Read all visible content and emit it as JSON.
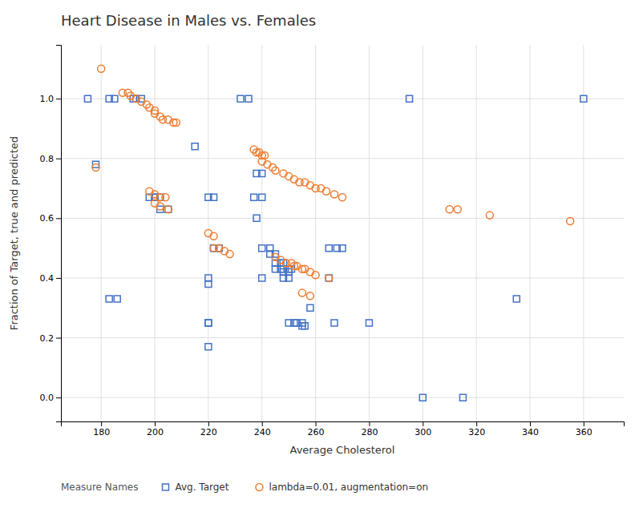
{
  "chart_data": {
    "type": "scatter",
    "title": "Heart Disease in Males vs. Females",
    "xlabel": "Average Cholesterol",
    "ylabel": "Fraction of Target, true and predicted",
    "xlim": [
      165,
      375
    ],
    "ylim": [
      -0.08,
      1.18
    ],
    "xticks": [
      180,
      200,
      220,
      240,
      260,
      280,
      300,
      320,
      340,
      360
    ],
    "yticks": [
      {
        "value": 0.0,
        "label": "0.0"
      },
      0.2,
      0.4,
      0.6,
      0.8,
      {
        "value": 1.0,
        "label": "1.0"
      }
    ],
    "grid": true,
    "legend": "bottom",
    "legend_title": "Measure Names",
    "series": [
      {
        "name": "Avg. Target",
        "color": "#4472C4",
        "marker": "square",
        "x": [
          175,
          183,
          185,
          192,
          193,
          195,
          198,
          200,
          202,
          200,
          202,
          205,
          178,
          183,
          186,
          215,
          220,
          222,
          222,
          224,
          220,
          220,
          220,
          220,
          220,
          232,
          235,
          238,
          240,
          237,
          240,
          238,
          240,
          243,
          240,
          243,
          245,
          245,
          247,
          248,
          245,
          247,
          248,
          250,
          251,
          248,
          250,
          248,
          250,
          250,
          252,
          253,
          255,
          255,
          256,
          258,
          265,
          268,
          270,
          265,
          267,
          280,
          295,
          300,
          315,
          335,
          360
        ],
        "values": [
          1.0,
          1.0,
          1.0,
          1.0,
          1.0,
          1.0,
          0.67,
          0.67,
          0.67,
          0.67,
          0.63,
          0.63,
          0.78,
          0.33,
          0.33,
          0.84,
          0.67,
          0.67,
          0.5,
          0.5,
          0.4,
          0.38,
          0.25,
          0.25,
          0.17,
          1.0,
          1.0,
          0.75,
          0.75,
          0.67,
          0.67,
          0.6,
          0.5,
          0.5,
          0.4,
          0.48,
          0.48,
          0.45,
          0.45,
          0.45,
          0.43,
          0.43,
          0.43,
          0.43,
          0.43,
          0.42,
          0.42,
          0.4,
          0.4,
          0.25,
          0.25,
          0.25,
          0.25,
          0.24,
          0.24,
          0.3,
          0.5,
          0.5,
          0.5,
          0.4,
          0.25,
          0.25,
          1.0,
          0.0,
          0.0,
          0.33,
          1.0
        ]
      },
      {
        "name": "lambda=0.01, augmentation=on",
        "color": "#ED7D31",
        "marker": "circle",
        "x": [
          180,
          188,
          190,
          191,
          193,
          195,
          197,
          198,
          200,
          200,
          202,
          203,
          205,
          207,
          208,
          198,
          200,
          202,
          204,
          200,
          202,
          205,
          178,
          220,
          222,
          222,
          224,
          226,
          228,
          237,
          238,
          239,
          240,
          241,
          240,
          242,
          244,
          245,
          248,
          250,
          252,
          254,
          256,
          258,
          260,
          262,
          264,
          267,
          270,
          245,
          247,
          249,
          251,
          252,
          253,
          255,
          256,
          258,
          260,
          265,
          255,
          258,
          310,
          313,
          325,
          355
        ],
        "values": [
          1.1,
          1.02,
          1.02,
          1.01,
          1.0,
          0.99,
          0.98,
          0.97,
          0.96,
          0.95,
          0.94,
          0.93,
          0.93,
          0.92,
          0.92,
          0.69,
          0.68,
          0.67,
          0.67,
          0.65,
          0.64,
          0.63,
          0.77,
          0.55,
          0.54,
          0.5,
          0.5,
          0.49,
          0.48,
          0.83,
          0.82,
          0.82,
          0.81,
          0.81,
          0.79,
          0.78,
          0.77,
          0.76,
          0.75,
          0.74,
          0.73,
          0.72,
          0.72,
          0.71,
          0.7,
          0.7,
          0.69,
          0.68,
          0.67,
          0.47,
          0.46,
          0.45,
          0.45,
          0.44,
          0.44,
          0.43,
          0.43,
          0.42,
          0.41,
          0.4,
          0.35,
          0.34,
          0.63,
          0.63,
          0.61,
          0.59
        ]
      }
    ]
  }
}
